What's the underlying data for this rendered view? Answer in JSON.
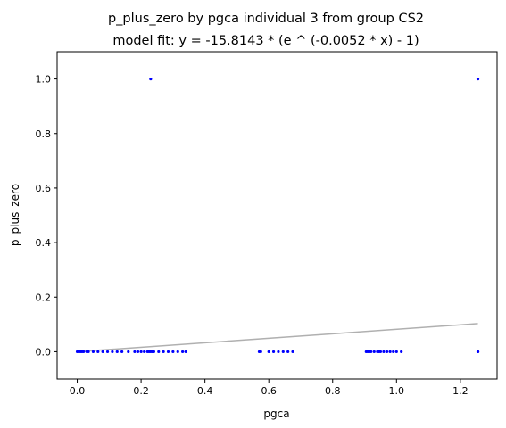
{
  "chart_data": {
    "type": "scatter",
    "title": "p_plus_zero by pgca individual 3 from group CS2",
    "subtitle": "model fit: y = -15.8143 * (e ^ (-0.0052 * x) - 1)",
    "xlabel": "pgca",
    "ylabel": "p_plus_zero",
    "xlim": [
      -0.063,
      1.315
    ],
    "ylim": [
      -0.1,
      1.1
    ],
    "xticks": [
      0.0,
      0.2,
      0.4,
      0.6,
      0.8,
      1.0,
      1.2
    ],
    "xtick_labels": [
      "0.0",
      "0.2",
      "0.4",
      "0.6",
      "0.8",
      "1.0",
      "1.2"
    ],
    "yticks": [
      0.0,
      0.2,
      0.4,
      0.6,
      0.8,
      1.0
    ],
    "ytick_labels": [
      "0.0",
      "0.2",
      "0.4",
      "0.6",
      "0.8",
      "1.0"
    ],
    "grid": false,
    "points": {
      "color": "#0000ff",
      "x": [
        0.0,
        0.005,
        0.01,
        0.015,
        0.02,
        0.03,
        0.035,
        0.05,
        0.065,
        0.08,
        0.095,
        0.11,
        0.125,
        0.14,
        0.16,
        0.18,
        0.19,
        0.2,
        0.21,
        0.22,
        0.225,
        0.23,
        0.235,
        0.24,
        0.255,
        0.27,
        0.285,
        0.3,
        0.315,
        0.33,
        0.34,
        0.57,
        0.575,
        0.6,
        0.615,
        0.63,
        0.645,
        0.66,
        0.675,
        0.905,
        0.91,
        0.915,
        0.92,
        0.93,
        0.94,
        0.945,
        0.95,
        0.96,
        0.97,
        0.98,
        0.99,
        1.0,
        1.015,
        1.255,
        1.255,
        0.23,
        1.255
      ],
      "y": [
        0,
        0,
        0,
        0,
        0,
        0,
        0,
        0,
        0,
        0,
        0,
        0,
        0,
        0,
        0,
        0,
        0,
        0,
        0,
        0,
        0,
        0,
        0,
        0,
        0,
        0,
        0,
        0,
        0,
        0,
        0,
        0,
        0,
        0,
        0,
        0,
        0,
        0,
        0,
        0,
        0,
        0,
        0,
        0,
        0,
        0,
        0,
        0,
        0,
        0,
        0,
        0,
        0,
        0,
        0,
        1.0,
        1.0
      ]
    },
    "fit_line": {
      "color": "#b0b0b0",
      "x": [
        0.0,
        1.255
      ],
      "y": [
        0.0,
        0.103
      ]
    }
  }
}
